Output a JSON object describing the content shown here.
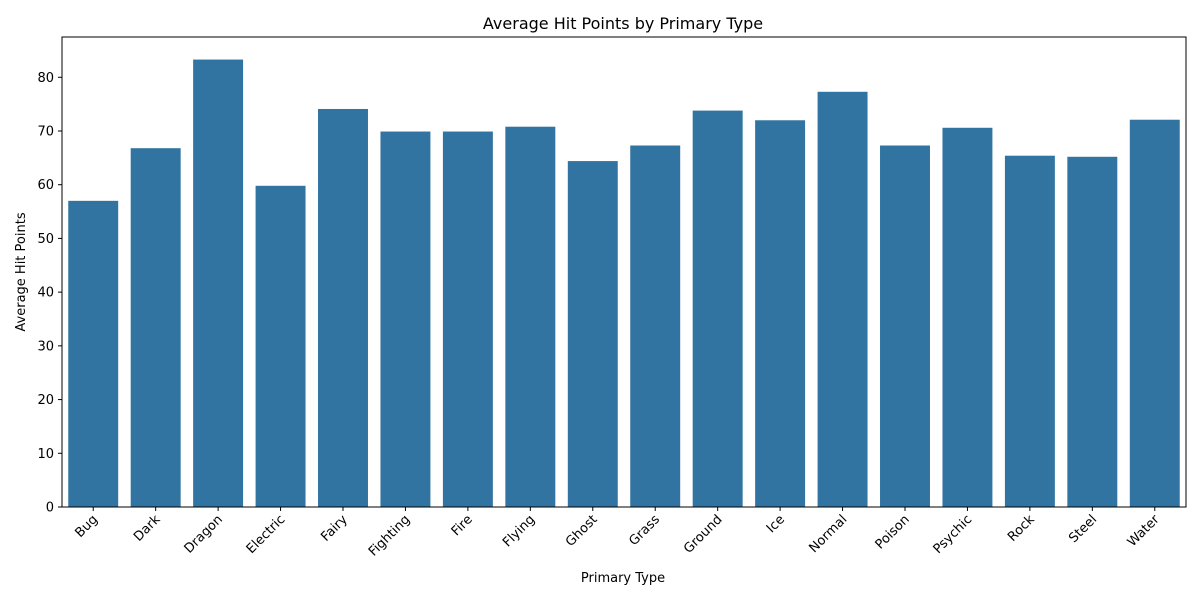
{
  "chart_data": {
    "type": "bar",
    "title": "Average Hit Points by Primary Type",
    "xlabel": "Primary Type",
    "ylabel": "Average Hit Points",
    "categories": [
      "Bug",
      "Dark",
      "Dragon",
      "Electric",
      "Fairy",
      "Fighting",
      "Fire",
      "Flying",
      "Ghost",
      "Grass",
      "Ground",
      "Ice",
      "Normal",
      "Poison",
      "Psychic",
      "Rock",
      "Steel",
      "Water"
    ],
    "values": [
      57.0,
      66.8,
      83.3,
      59.8,
      74.1,
      69.9,
      69.9,
      70.8,
      64.4,
      67.3,
      73.8,
      72.0,
      77.3,
      67.3,
      70.6,
      65.4,
      65.2,
      72.1
    ],
    "ylim": [
      0,
      87.5
    ],
    "yticks": [
      0,
      10,
      20,
      30,
      40,
      50,
      60,
      70,
      80
    ],
    "bar_color": "#3274a1",
    "grid": false,
    "legend": "none",
    "xtick_rotation": 45
  }
}
